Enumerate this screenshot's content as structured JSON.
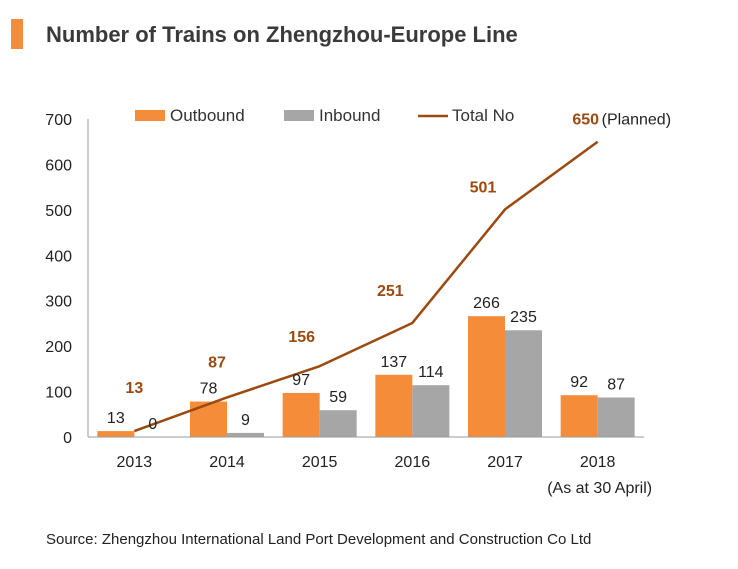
{
  "title": "Number of Trains on Zhengzhou-Europe Line",
  "source": "Source: Zhengzhou International Land Port Development and Construction Co Ltd",
  "colors": {
    "outbound": "#F58C3A",
    "inbound": "#A6A6A6",
    "total": "#9C4A10",
    "title_bar": "#F58C3A"
  },
  "chart_data": {
    "type": "bar",
    "categories": [
      "2013",
      "2014",
      "2015",
      "2016",
      "2017",
      "2018"
    ],
    "category_note": "(As at 30 April)",
    "series": [
      {
        "name": "Outbound",
        "type": "bar",
        "values": [
          13,
          78,
          97,
          137,
          266,
          92
        ]
      },
      {
        "name": "Inbound",
        "type": "bar",
        "values": [
          0,
          9,
          59,
          114,
          235,
          87
        ]
      },
      {
        "name": "Total No",
        "type": "line",
        "values": [
          13,
          87,
          156,
          251,
          501,
          650
        ]
      }
    ],
    "total_note": "(Planned)",
    "ylim": [
      0,
      700
    ],
    "yticks": [
      0,
      100,
      200,
      300,
      400,
      500,
      600,
      700
    ],
    "legend": "top",
    "grid": false
  }
}
